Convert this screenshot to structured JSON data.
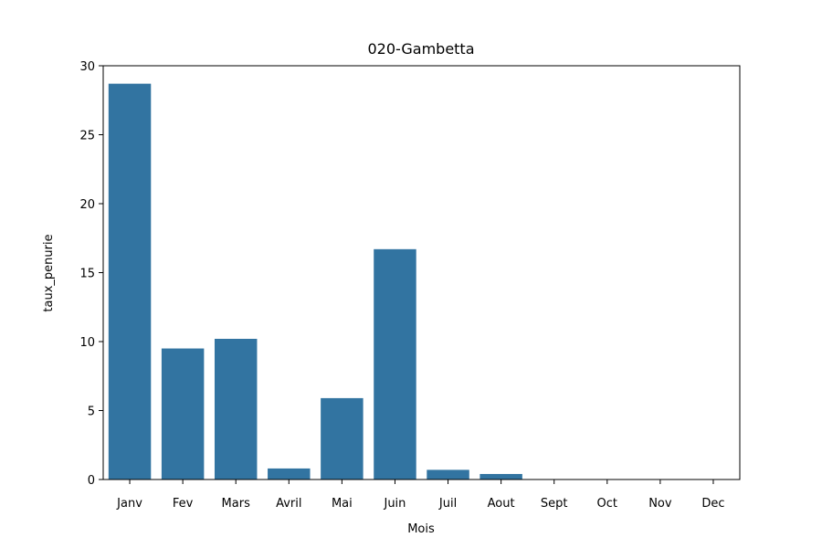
{
  "chart_data": {
    "type": "bar",
    "title": "020-Gambetta",
    "xlabel": "Mois",
    "ylabel": "taux_penurie",
    "categories": [
      "Janv",
      "Fev",
      "Mars",
      "Avril",
      "Mai",
      "Juin",
      "Juil",
      "Aout",
      "Sept",
      "Oct",
      "Nov",
      "Dec"
    ],
    "values": [
      28.7,
      9.5,
      10.2,
      0.8,
      5.9,
      16.7,
      0.7,
      0.4,
      0,
      0,
      0,
      0
    ],
    "ylim": [
      0,
      30
    ],
    "yticks": [
      0,
      5,
      10,
      15,
      20,
      25,
      30
    ],
    "grid": false,
    "colors": {
      "bar": "#3274a1",
      "axis": "#000000"
    }
  }
}
